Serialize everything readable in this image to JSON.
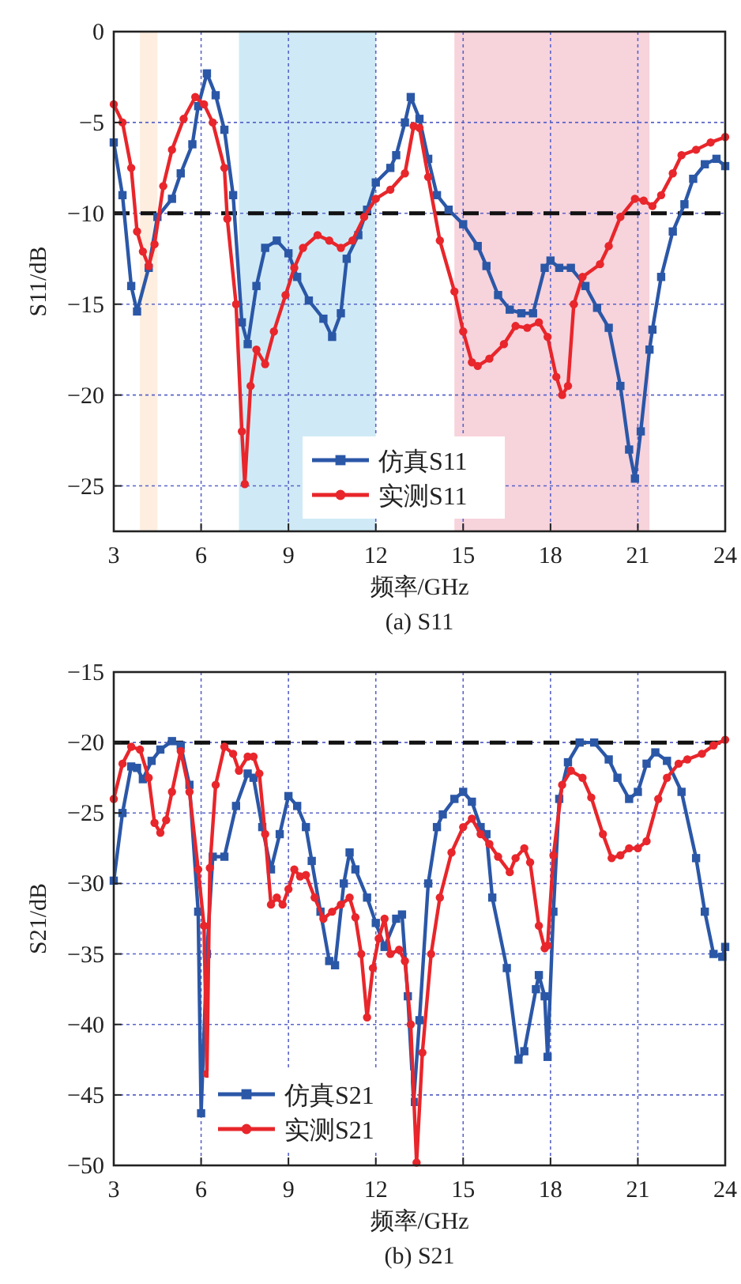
{
  "chart_data": [
    {
      "type": "line",
      "xlabel": "频率/GHz",
      "ylabel": "S11/dB",
      "annotations": [
        "(a) S11"
      ],
      "xlim": [
        3,
        24
      ],
      "ylim": [
        -27.5,
        0
      ],
      "xticks": [
        3,
        6,
        9,
        12,
        15,
        18,
        21,
        24
      ],
      "yticks": [
        0,
        {
          "value": -5,
          "label": "−5"
        },
        {
          "value": -10,
          "label": "−10"
        },
        {
          "value": -15,
          "label": "−15"
        },
        {
          "value": -20,
          "label": "−20"
        },
        {
          "value": -25,
          "label": "−25"
        }
      ],
      "grid": true,
      "legend": "bottom",
      "bands": [
        {
          "axis": "x",
          "from": 3.9,
          "to": 4.5,
          "color": "#fdeee0"
        },
        {
          "axis": "x",
          "from": 7.3,
          "to": 12,
          "color": "#cfeaf6"
        },
        {
          "axis": "x",
          "from": 14.7,
          "to": 21.4,
          "color": "#f7d3dc"
        }
      ],
      "ref_lines": [
        {
          "axis": "y",
          "value": -10,
          "color": "#111111",
          "line_style": "dashed"
        }
      ],
      "series": [
        {
          "name": "仿真S11",
          "color": "#2b57a7",
          "marker": "square",
          "x": [
            3,
            3.3,
            3.6,
            3.8,
            4.2,
            4.5,
            5,
            5.3,
            5.7,
            5.9,
            6.2,
            6.5,
            6.8,
            7.1,
            7.4,
            7.6,
            7.9,
            8.2,
            8.6,
            9,
            9.3,
            9.7,
            10.2,
            10.5,
            10.8,
            11,
            11.4,
            11.7,
            12,
            12.5,
            12.7,
            13,
            13.2,
            13.5,
            13.8,
            14.1,
            14.5,
            15,
            15.5,
            15.8,
            16.2,
            16.6,
            17,
            17.4,
            17.8,
            18,
            18.3,
            18.7,
            19.2,
            19.6,
            20,
            20.4,
            20.7,
            20.9,
            21.1,
            21.4,
            21.5,
            21.8,
            22.2,
            22.6,
            22.9,
            23.3,
            23.7,
            24
          ],
          "values": [
            -6.1,
            -9,
            -14,
            -15.4,
            -13,
            -10.2,
            -9.2,
            -7.8,
            -6.2,
            -4.1,
            -2.3,
            -3.5,
            -5.4,
            -9,
            -16,
            -17.2,
            -14,
            -11.9,
            -11.5,
            -12.2,
            -13.5,
            -14.8,
            -15.8,
            -16.8,
            -15.5,
            -12.5,
            -11.2,
            -9.8,
            -8.3,
            -7.5,
            -6.8,
            -5,
            -3.6,
            -4.8,
            -7,
            -9,
            -9.8,
            -10.6,
            -11.8,
            -12.9,
            -14.5,
            -15.3,
            -15.5,
            -15.5,
            -13,
            -12.6,
            -13,
            -13,
            -14,
            -15.2,
            -16.3,
            -19.5,
            -23,
            -24.6,
            -22,
            -17.5,
            -16.4,
            -13.5,
            -11,
            -9.5,
            -8.1,
            -7.3,
            -7,
            -7.4
          ]
        },
        {
          "name": "实测S11",
          "color": "#e8262b",
          "marker": "circle",
          "x": [
            3,
            3.3,
            3.6,
            3.8,
            4,
            4.2,
            4.4,
            4.7,
            5,
            5.4,
            5.8,
            6.1,
            6.4,
            6.8,
            6.9,
            7.2,
            7.4,
            7.5,
            7.7,
            7.9,
            8.2,
            8.5,
            8.9,
            9.2,
            9.5,
            10,
            10.4,
            10.8,
            11.2,
            11.6,
            12,
            12.5,
            13,
            13.3,
            13.5,
            13.8,
            14.2,
            14.7,
            15,
            15.3,
            15.5,
            15.9,
            16.4,
            16.8,
            17.2,
            17.6,
            17.9,
            18.2,
            18.4,
            18.6,
            18.8,
            19.1,
            19.7,
            20,
            20.4,
            20.9,
            21.2,
            21.5,
            21.8,
            22.2,
            22.5,
            23,
            23.5,
            24
          ],
          "values": [
            -4,
            -5,
            -7.5,
            -11,
            -12.1,
            -12.9,
            -11.7,
            -8.5,
            -6.5,
            -4.8,
            -3.6,
            -4,
            -5,
            -7.5,
            -10.3,
            -15,
            -22,
            -24.9,
            -19.5,
            -17.5,
            -18.3,
            -16.5,
            -14.5,
            -13,
            -11.9,
            -11.2,
            -11.5,
            -11.9,
            -11.5,
            -10.2,
            -9.2,
            -8.7,
            -7.8,
            -5.2,
            -5.3,
            -8,
            -11.5,
            -14.3,
            -16.5,
            -18.2,
            -18.4,
            -18,
            -17.2,
            -16.2,
            -16.3,
            -16,
            -16.8,
            -19,
            -20,
            -19.5,
            -15,
            -13.5,
            -12.8,
            -11.8,
            -10.2,
            -9.2,
            -9.3,
            -9.6,
            -9,
            -7.8,
            -6.8,
            -6.5,
            -6.1,
            -5.8
          ]
        }
      ]
    },
    {
      "type": "line",
      "xlabel": "频率/GHz",
      "ylabel": "S21/dB",
      "annotations": [
        "(b) S21"
      ],
      "xlim": [
        3,
        24
      ],
      "ylim": [
        -50,
        -15
      ],
      "xticks": [
        3,
        6,
        9,
        12,
        15,
        18,
        21,
        24
      ],
      "yticks": [
        {
          "value": -15,
          "label": "−15"
        },
        {
          "value": -20,
          "label": "−20"
        },
        {
          "value": -25,
          "label": "−25"
        },
        {
          "value": -30,
          "label": "−30"
        },
        {
          "value": -35,
          "label": "−35"
        },
        {
          "value": -40,
          "label": "−40"
        },
        {
          "value": -45,
          "label": "−45"
        },
        {
          "value": -50,
          "label": "−50"
        }
      ],
      "grid": true,
      "legend": "bottom left",
      "ref_lines": [
        {
          "axis": "y",
          "value": -20,
          "color": "#111111",
          "line_style": "dashed"
        }
      ],
      "series": [
        {
          "name": "仿真S21",
          "color": "#2b57a7",
          "marker": "square",
          "x": [
            3,
            3.3,
            3.6,
            3.8,
            4,
            4.3,
            4.6,
            5,
            5.3,
            5.6,
            5.9,
            6,
            6.2,
            6.4,
            6.8,
            7.2,
            7.6,
            7.8,
            8.1,
            8.4,
            8.7,
            9,
            9.3,
            9.6,
            9.8,
            10.1,
            10.4,
            10.6,
            10.9,
            11.1,
            11.3,
            11.7,
            12,
            12.3,
            12.7,
            12.9,
            13.1,
            13.3,
            13.5,
            13.8,
            14.1,
            14.3,
            14.7,
            15,
            15.3,
            15.6,
            15.8,
            16,
            16.5,
            16.9,
            17.1,
            17.5,
            17.6,
            17.8,
            17.9,
            18.1,
            18.3,
            18.6,
            19,
            19.5,
            20,
            20.3,
            20.7,
            21,
            21.3,
            21.6,
            22,
            22.5,
            23,
            23.3,
            23.6,
            23.9,
            24
          ],
          "values": [
            -29.8,
            -25,
            -21.7,
            -21.8,
            -22.6,
            -21.3,
            -20.5,
            -19.9,
            -20.2,
            -23,
            -32,
            -46.3,
            -35,
            -28.1,
            -28.1,
            -24.5,
            -22.2,
            -22.5,
            -26,
            -29,
            -26.5,
            -23.8,
            -24.5,
            -26,
            -28.4,
            -32,
            -35.5,
            -35.8,
            -30,
            -27.8,
            -29,
            -31,
            -32.8,
            -34.5,
            -32.5,
            -32.2,
            -38,
            -45.5,
            -39.7,
            -30,
            -26,
            -25.1,
            -24,
            -23.5,
            -24.2,
            -26,
            -26.5,
            -31,
            -36,
            -42.5,
            -41.9,
            -37.5,
            -36.5,
            -38,
            -42.3,
            -32,
            -24,
            -21.4,
            -20,
            -20,
            -21.2,
            -22.5,
            -24,
            -23.5,
            -21.5,
            -20.7,
            -21.3,
            -23.5,
            -28.2,
            -32,
            -35,
            -35.2,
            -34.5
          ]
        },
        {
          "name": "实测S21",
          "color": "#e8262b",
          "marker": "circle",
          "x": [
            3,
            3.3,
            3.6,
            3.9,
            4.2,
            4.4,
            4.6,
            4.8,
            5,
            5.3,
            5.6,
            5.9,
            6.1,
            6.2,
            6.3,
            6.5,
            6.8,
            7.1,
            7.3,
            7.6,
            7.8,
            8,
            8.2,
            8.4,
            8.6,
            8.8,
            9,
            9.2,
            9.4,
            9.6,
            9.9,
            10.2,
            10.5,
            10.8,
            11.1,
            11.3,
            11.5,
            11.7,
            11.9,
            12.1,
            12.3,
            12.5,
            12.8,
            13,
            13.2,
            13.4,
            13.6,
            13.9,
            14.2,
            14.6,
            15,
            15.3,
            15.6,
            15.9,
            16.2,
            16.6,
            16.8,
            17.1,
            17.3,
            17.6,
            17.8,
            17.9,
            18.1,
            18.4,
            18.7,
            19.1,
            19.4,
            19.8,
            20.1,
            20.4,
            20.7,
            21,
            21.3,
            21.7,
            22,
            22.4,
            22.7,
            23.2,
            23.6,
            24
          ],
          "values": [
            -24,
            -21.5,
            -20.3,
            -20.5,
            -22.5,
            -25.7,
            -26.4,
            -25.5,
            -23.5,
            -20.6,
            -23.5,
            -29,
            -33,
            -43.5,
            -28.9,
            -23,
            -20.3,
            -20.8,
            -22,
            -21,
            -21,
            -22.2,
            -26.5,
            -31.5,
            -31,
            -31.5,
            -30.4,
            -29,
            -29.5,
            -29.4,
            -31,
            -32.5,
            -32,
            -31.5,
            -31,
            -32.4,
            -35,
            -39.5,
            -36,
            -33.9,
            -32.5,
            -35,
            -34.7,
            -35.5,
            -40,
            -49.8,
            -42,
            -35,
            -31,
            -27.8,
            -26,
            -25.4,
            -26.5,
            -27.2,
            -28.1,
            -29.2,
            -28.2,
            -27.5,
            -28.5,
            -33,
            -34.6,
            -34.4,
            -28,
            -23,
            -22,
            -22.5,
            -23.9,
            -26.5,
            -28.2,
            -28,
            -27.5,
            -27.5,
            -27,
            -24,
            -22.5,
            -21.5,
            -21.2,
            -20.8,
            -20.2,
            -19.8
          ]
        }
      ]
    }
  ]
}
